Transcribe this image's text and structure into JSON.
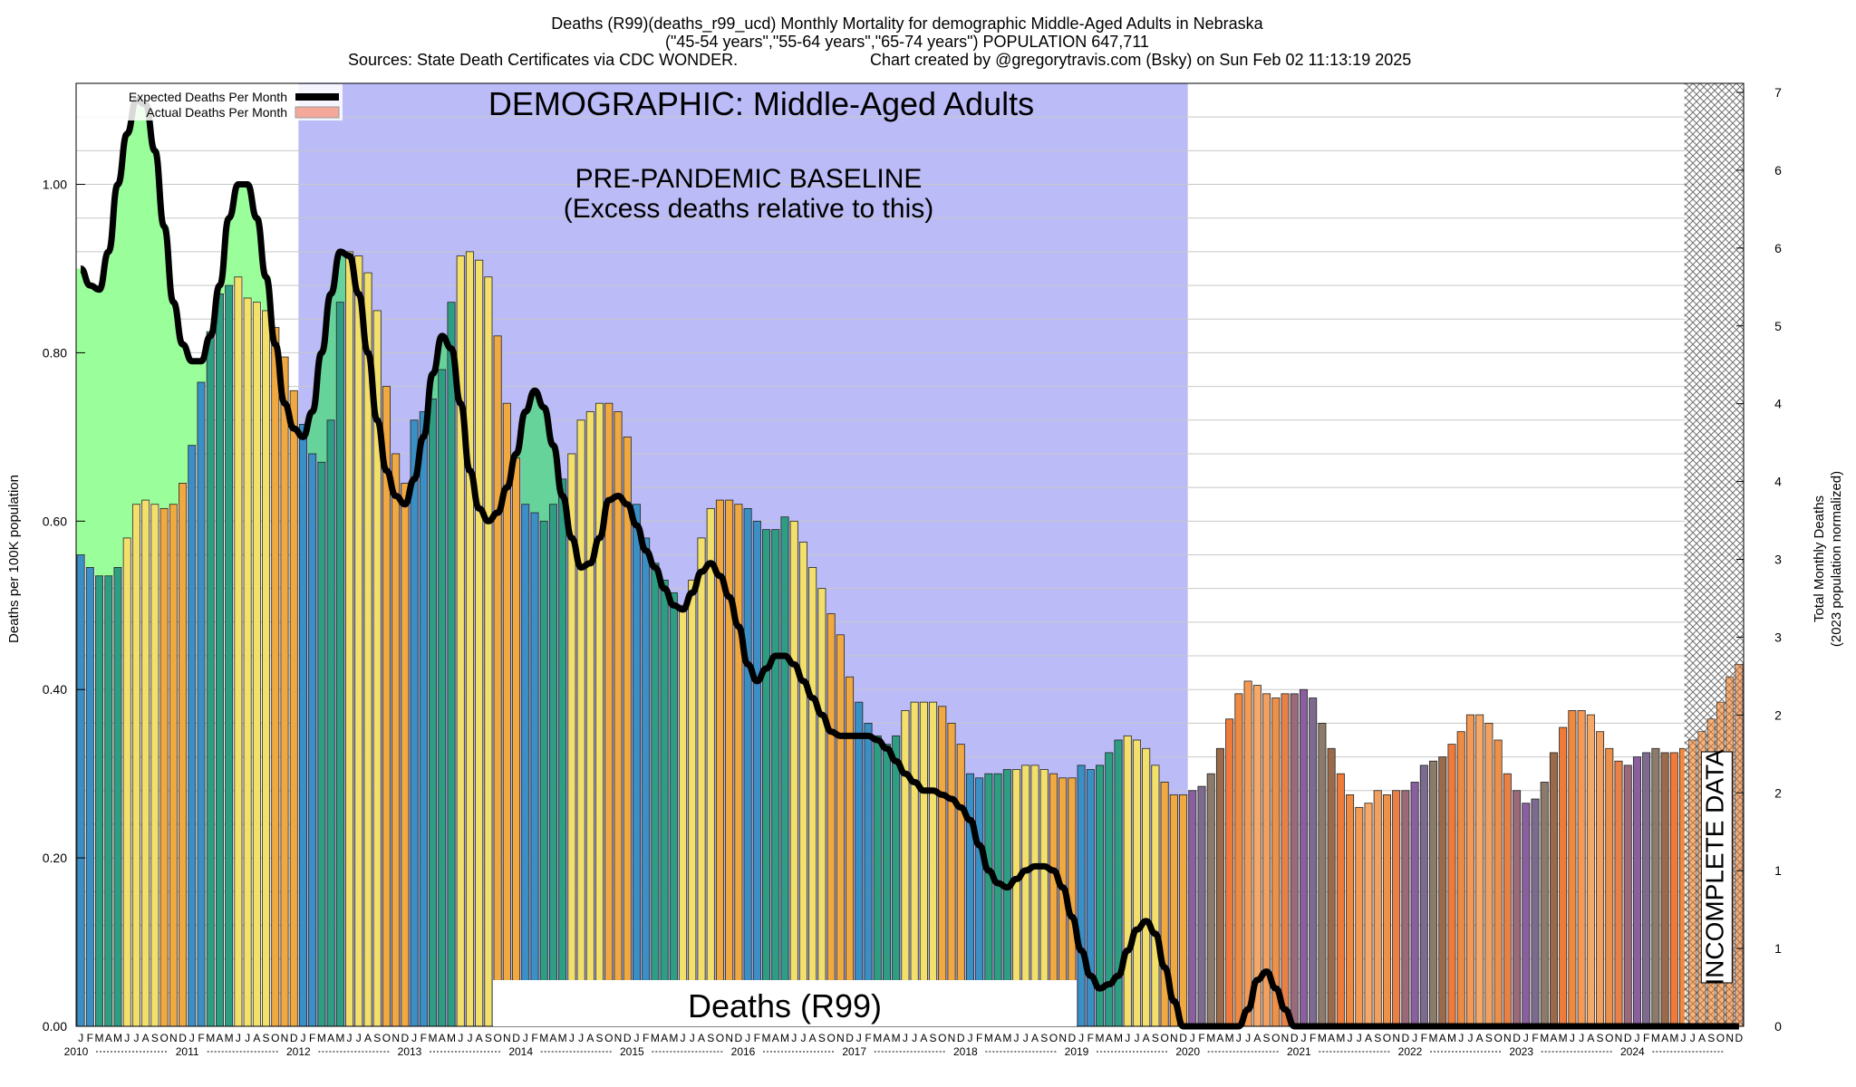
{
  "header": {
    "line1": "Deaths (R99)(deaths_r99_ucd) Monthly Mortality for demographic Middle-Aged Adults in Nebraska",
    "line2": "(\"45-54 years\",\"55-64 years\",\"65-74 years\") POPULATION 647,711",
    "line3_left": "Sources: State Death Certificates via CDC WONDER.",
    "line3_right": "Chart created by @gregorytravis.com (Bsky) on Sun Feb 02 11:13:19 2025"
  },
  "chart_data": {
    "type": "bar",
    "ylabel": "Deaths per 100K population",
    "y2label_line1": "Total Monthly Deaths",
    "y2label_line2": "(2023 population normalized)",
    "ylim": [
      0,
      1.12
    ],
    "yticks": [
      "0.00",
      "0.20",
      "0.40",
      "0.60",
      "0.80",
      "1.00"
    ],
    "ytick_values": [
      0,
      0.2,
      0.4,
      0.6,
      0.8,
      1.0
    ],
    "y2ticks": [
      "0",
      "1",
      "1",
      "2",
      "2",
      "3",
      "3",
      "4",
      "4",
      "5",
      "6",
      "6",
      "7"
    ],
    "legend": {
      "expected": "Expected Deaths Per Month",
      "actual": "Actual Deaths Per Month",
      "placement": "top-left"
    },
    "annotations": {
      "demographic": "DEMOGRAPHIC: Middle-Aged Adults",
      "baseline_line1": "PRE-PANDEMIC BASELINE",
      "baseline_line2": "(Excess deaths relative to this)",
      "series_label": "Deaths (R99)",
      "incomplete": "INCOMPLETE DATA"
    },
    "month_letters": [
      "J",
      "F",
      "M",
      "A",
      "M",
      "J",
      "J",
      "A",
      "S",
      "O",
      "N",
      "D"
    ],
    "years": [
      "2010",
      "2011",
      "2012",
      "2013",
      "2014",
      "2015",
      "2016",
      "2017",
      "2018",
      "2019",
      "2020",
      "2021",
      "2022",
      "2023",
      "2024"
    ],
    "baseline_period": [
      "2012-01",
      "2019-12"
    ],
    "incomplete_period": [
      "2024-07",
      "2024-12"
    ],
    "series": [
      {
        "name": "Actual Deaths Per Month",
        "values": [
          0.56,
          0.545,
          0.535,
          0.535,
          0.545,
          0.58,
          0.62,
          0.625,
          0.62,
          0.615,
          0.62,
          0.645,
          0.69,
          0.765,
          0.825,
          0.87,
          0.88,
          0.89,
          0.865,
          0.86,
          0.85,
          0.83,
          0.795,
          0.755,
          0.715,
          0.68,
          0.67,
          0.72,
          0.86,
          0.92,
          0.915,
          0.895,
          0.85,
          0.76,
          0.68,
          0.645,
          0.72,
          0.73,
          0.745,
          0.78,
          0.86,
          0.915,
          0.92,
          0.91,
          0.89,
          0.82,
          0.74,
          0.675,
          0.62,
          0.61,
          0.6,
          0.62,
          0.65,
          0.68,
          0.72,
          0.73,
          0.74,
          0.74,
          0.73,
          0.7,
          0.62,
          0.58,
          0.55,
          0.53,
          0.515,
          0.5,
          0.53,
          0.58,
          0.615,
          0.625,
          0.625,
          0.62,
          0.615,
          0.6,
          0.59,
          0.59,
          0.605,
          0.6,
          0.575,
          0.545,
          0.52,
          0.49,
          0.465,
          0.415,
          0.385,
          0.36,
          0.345,
          0.335,
          0.345,
          0.375,
          0.385,
          0.385,
          0.385,
          0.38,
          0.36,
          0.335,
          0.3,
          0.295,
          0.3,
          0.3,
          0.305,
          0.305,
          0.31,
          0.31,
          0.305,
          0.3,
          0.295,
          0.295,
          0.31,
          0.305,
          0.31,
          0.325,
          0.34,
          0.345,
          0.34,
          0.33,
          0.31,
          0.29,
          0.275,
          0.275,
          0.28,
          0.285,
          0.3,
          0.33,
          0.365,
          0.395,
          0.41,
          0.405,
          0.395,
          0.39,
          0.395,
          0.395,
          0.4,
          0.39,
          0.36,
          0.33,
          0.3,
          0.275,
          0.26,
          0.265,
          0.28,
          0.275,
          0.28,
          0.28,
          0.29,
          0.31,
          0.315,
          0.32,
          0.335,
          0.35,
          0.37,
          0.37,
          0.36,
          0.34,
          0.3,
          0.28,
          0.265,
          0.27,
          0.29,
          0.325,
          0.355,
          0.375,
          0.375,
          0.37,
          0.35,
          0.33,
          0.315,
          0.31,
          0.32,
          0.325,
          0.33,
          0.325,
          0.325,
          0.33,
          0.34,
          0.35,
          0.365,
          0.385,
          0.415,
          0.43
        ]
      },
      {
        "name": "Expected Deaths Per Month",
        "values": [
          0.9,
          0.88,
          0.875,
          0.92,
          1.0,
          1.06,
          1.1,
          1.095,
          1.04,
          0.95,
          0.86,
          0.81,
          0.79,
          0.79,
          0.82,
          0.88,
          0.96,
          1.0,
          1.0,
          0.96,
          0.89,
          0.81,
          0.74,
          0.71,
          0.7,
          0.73,
          0.8,
          0.87,
          0.92,
          0.915,
          0.87,
          0.8,
          0.72,
          0.66,
          0.63,
          0.62,
          0.65,
          0.7,
          0.775,
          0.82,
          0.805,
          0.74,
          0.66,
          0.615,
          0.6,
          0.61,
          0.64,
          0.68,
          0.73,
          0.755,
          0.735,
          0.69,
          0.63,
          0.58,
          0.545,
          0.55,
          0.58,
          0.625,
          0.63,
          0.62,
          0.595,
          0.565,
          0.545,
          0.52,
          0.5,
          0.495,
          0.515,
          0.54,
          0.55,
          0.535,
          0.51,
          0.475,
          0.43,
          0.41,
          0.425,
          0.44,
          0.44,
          0.43,
          0.41,
          0.39,
          0.37,
          0.35,
          0.345,
          0.345,
          0.345,
          0.345,
          0.34,
          0.33,
          0.315,
          0.3,
          0.29,
          0.28,
          0.28,
          0.275,
          0.27,
          0.26,
          0.245,
          0.215,
          0.185,
          0.17,
          0.165,
          0.175,
          0.185,
          0.19,
          0.19,
          0.185,
          0.165,
          0.13,
          0.09,
          0.06,
          0.045,
          0.05,
          0.06,
          0.09,
          0.115,
          0.125,
          0.11,
          0.07,
          0.03,
          0.0,
          0.0,
          0.0,
          0.0,
          0.0,
          0.0,
          0.0,
          0.02,
          0.055,
          0.065,
          0.045,
          0.02,
          0.0,
          0.0,
          0.0,
          0.0,
          0.0,
          0.0,
          0.0,
          0.0,
          0.0,
          0.0,
          0.0,
          0.0,
          0.0,
          0.0,
          0.0,
          0.0,
          0.0,
          0.0,
          0.0,
          0.0,
          0.0,
          0.0,
          0.0,
          0.0,
          0.0,
          0.0,
          0.0,
          0.0,
          0.0,
          0.0,
          0.0,
          0.0,
          0.0,
          0.0,
          0.0,
          0.0,
          0.0,
          0.0,
          0.0,
          0.0,
          0.0,
          0.0,
          0.0,
          0.0,
          0.0,
          0.0,
          0.0,
          0.0,
          0.0
        ]
      }
    ],
    "colors": {
      "winter": "#3a8fc4",
      "spring": "#2e9e82",
      "summer": "#f2e06b",
      "fall": "#f0a840",
      "baseline_shade": "#bbbbf8",
      "excess_below": "#9aff9a",
      "expected_line": "#000000"
    }
  }
}
